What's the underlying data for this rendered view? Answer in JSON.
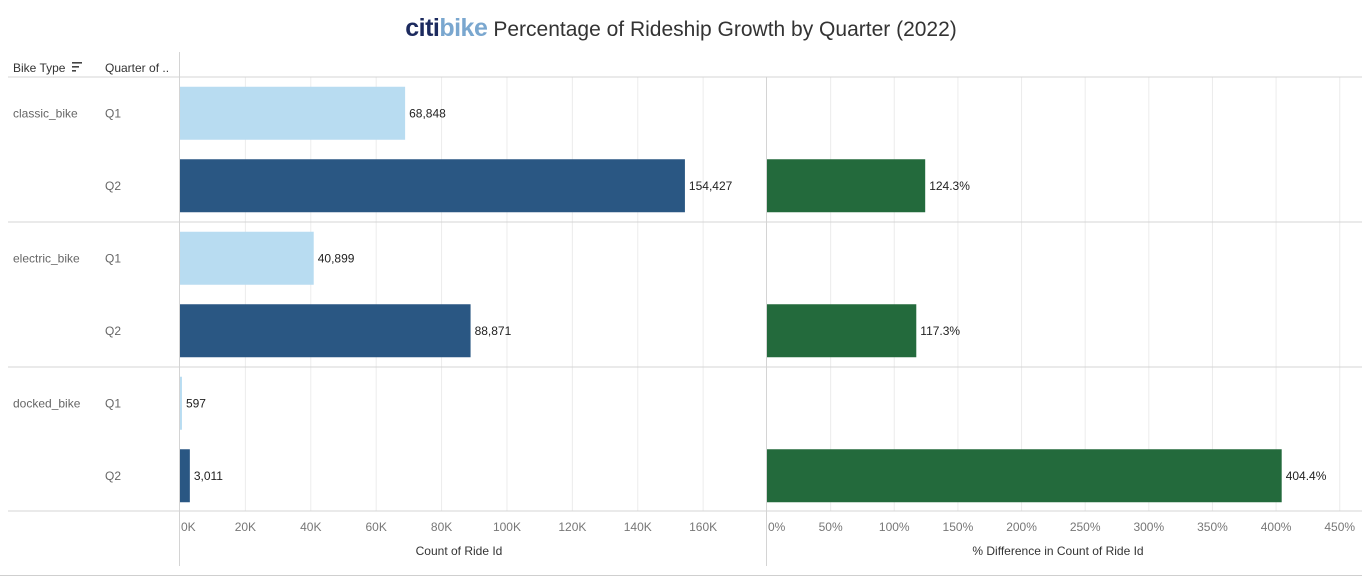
{
  "title": {
    "logo_part1": "citi",
    "logo_part2": "bike",
    "text": "Percentage of Rideship Growth by Quarter (2022)"
  },
  "headers": {
    "bike_type": "Bike Type",
    "quarter": "Quarter of .."
  },
  "icons": {
    "sort": "sort-descending-icon"
  },
  "colors": {
    "q1": "#b8dcf1",
    "q2": "#2a5783",
    "pct": "#236a3c"
  },
  "chart_data": [
    {
      "type": "bar",
      "orientation": "horizontal",
      "groups": [
        {
          "bike_type": "classic_bike",
          "bars": [
            {
              "quarter": "Q1",
              "value": 68848,
              "label": "68,848"
            },
            {
              "quarter": "Q2",
              "value": 154427,
              "label": "154,427"
            }
          ]
        },
        {
          "bike_type": "electric_bike",
          "bars": [
            {
              "quarter": "Q1",
              "value": 40899,
              "label": "40,899"
            },
            {
              "quarter": "Q2",
              "value": 88871,
              "label": "88,871"
            }
          ]
        },
        {
          "bike_type": "docked_bike",
          "bars": [
            {
              "quarter": "Q1",
              "value": 597,
              "label": "597"
            },
            {
              "quarter": "Q2",
              "value": 3011,
              "label": "3,011"
            }
          ]
        }
      ],
      "xlabel": "Count of Ride Id",
      "xlim": [
        0,
        178000
      ],
      "xticks": [
        0,
        20000,
        40000,
        60000,
        80000,
        100000,
        120000,
        140000,
        160000
      ],
      "xtick_labels": [
        "0K",
        "20K",
        "40K",
        "60K",
        "80K",
        "100K",
        "120K",
        "140K",
        "160K"
      ],
      "grid": true
    },
    {
      "type": "bar",
      "orientation": "horizontal",
      "groups": [
        {
          "bike_type": "classic_bike",
          "bars": [
            {
              "quarter": "Q1",
              "value": null,
              "label": ""
            },
            {
              "quarter": "Q2",
              "value": 124.3,
              "label": "124.3%"
            }
          ]
        },
        {
          "bike_type": "electric_bike",
          "bars": [
            {
              "quarter": "Q1",
              "value": null,
              "label": ""
            },
            {
              "quarter": "Q2",
              "value": 117.3,
              "label": "117.3%"
            }
          ]
        },
        {
          "bike_type": "docked_bike",
          "bars": [
            {
              "quarter": "Q1",
              "value": null,
              "label": ""
            },
            {
              "quarter": "Q2",
              "value": 404.4,
              "label": "404.4%"
            }
          ]
        }
      ],
      "xlabel": "% Difference in Count of Ride Id",
      "xlim": [
        0,
        462
      ],
      "xticks": [
        0,
        50,
        100,
        150,
        200,
        250,
        300,
        350,
        400,
        450
      ],
      "xtick_labels": [
        "0%",
        "50%",
        "100%",
        "150%",
        "200%",
        "250%",
        "300%",
        "350%",
        "400%",
        "450%"
      ],
      "grid": true
    }
  ]
}
